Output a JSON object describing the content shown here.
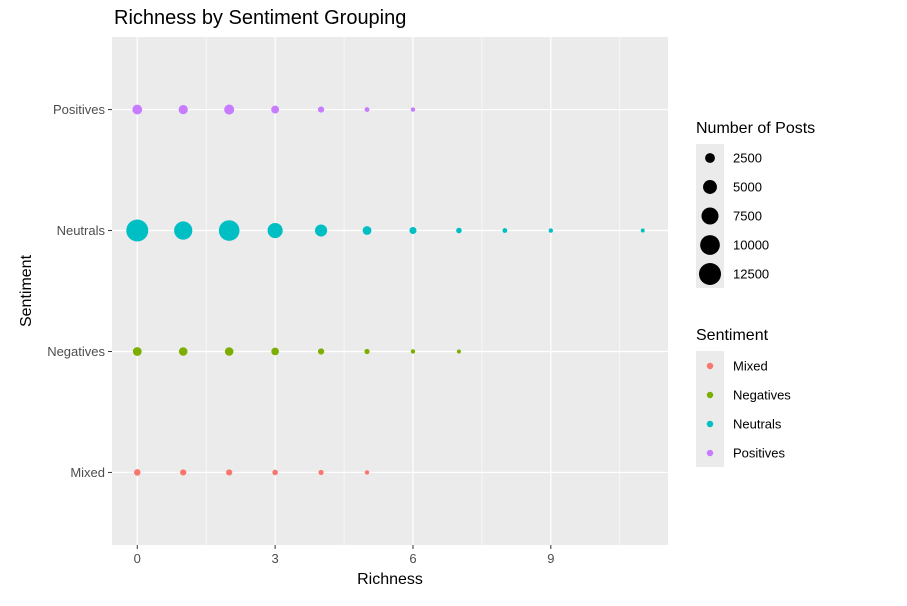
{
  "chart_data": {
    "type": "scatter",
    "title": "Richness by Sentiment Grouping",
    "xlabel": "Richness",
    "ylabel": "Sentiment",
    "xlim": [
      -0.55,
      11.55
    ],
    "x_ticks": [
      0,
      3,
      6,
      9
    ],
    "categories": [
      "Mixed",
      "Negatives",
      "Neutrals",
      "Positives"
    ],
    "grid": true,
    "size_legend": {
      "title": "Number of Posts",
      "items": [
        {
          "label": "2500",
          "value": 2500
        },
        {
          "label": "5000",
          "value": 5000
        },
        {
          "label": "7500",
          "value": 7500
        },
        {
          "label": "10000",
          "value": 10000
        },
        {
          "label": "12500",
          "value": 12500
        }
      ]
    },
    "color_legend": {
      "title": "Sentiment",
      "placement": "right"
    },
    "series": [
      {
        "name": "Mixed",
        "color": "#F8766D",
        "points": [
          {
            "x": 0,
            "y": "Mixed",
            "posts": 1100
          },
          {
            "x": 1,
            "y": "Mixed",
            "posts": 1000
          },
          {
            "x": 2,
            "y": "Mixed",
            "posts": 1000
          },
          {
            "x": 3,
            "y": "Mixed",
            "posts": 800
          },
          {
            "x": 4,
            "y": "Mixed",
            "posts": 700
          },
          {
            "x": 5,
            "y": "Mixed",
            "posts": 500
          }
        ]
      },
      {
        "name": "Negatives",
        "color": "#7CAE00",
        "points": [
          {
            "x": 0,
            "y": "Negatives",
            "posts": 2000
          },
          {
            "x": 1,
            "y": "Negatives",
            "posts": 1900
          },
          {
            "x": 2,
            "y": "Negatives",
            "posts": 1900
          },
          {
            "x": 3,
            "y": "Negatives",
            "posts": 1500
          },
          {
            "x": 4,
            "y": "Negatives",
            "posts": 1000
          },
          {
            "x": 5,
            "y": "Negatives",
            "posts": 700
          },
          {
            "x": 6,
            "y": "Negatives",
            "posts": 500
          },
          {
            "x": 7,
            "y": "Negatives",
            "posts": 400
          }
        ]
      },
      {
        "name": "Neutrals",
        "color": "#00BFC4",
        "points": [
          {
            "x": 0,
            "y": "Neutrals",
            "posts": 12500
          },
          {
            "x": 1,
            "y": "Neutrals",
            "posts": 8600
          },
          {
            "x": 2,
            "y": "Neutrals",
            "posts": 11000
          },
          {
            "x": 3,
            "y": "Neutrals",
            "posts": 5900
          },
          {
            "x": 4,
            "y": "Neutrals",
            "posts": 3800
          },
          {
            "x": 5,
            "y": "Neutrals",
            "posts": 2000
          },
          {
            "x": 6,
            "y": "Neutrals",
            "posts": 1300
          },
          {
            "x": 7,
            "y": "Neutrals",
            "posts": 800
          },
          {
            "x": 8,
            "y": "Neutrals",
            "posts": 600
          },
          {
            "x": 9,
            "y": "Neutrals",
            "posts": 500
          },
          {
            "x": 11,
            "y": "Neutrals",
            "posts": 400
          }
        ]
      },
      {
        "name": "Positives",
        "color": "#C77CFF",
        "points": [
          {
            "x": 0,
            "y": "Positives",
            "posts": 2500
          },
          {
            "x": 1,
            "y": "Positives",
            "posts": 2200
          },
          {
            "x": 2,
            "y": "Positives",
            "posts": 2600
          },
          {
            "x": 3,
            "y": "Positives",
            "posts": 1600
          },
          {
            "x": 4,
            "y": "Positives",
            "posts": 1000
          },
          {
            "x": 5,
            "y": "Positives",
            "posts": 600
          },
          {
            "x": 6,
            "y": "Positives",
            "posts": 500
          }
        ]
      }
    ]
  }
}
